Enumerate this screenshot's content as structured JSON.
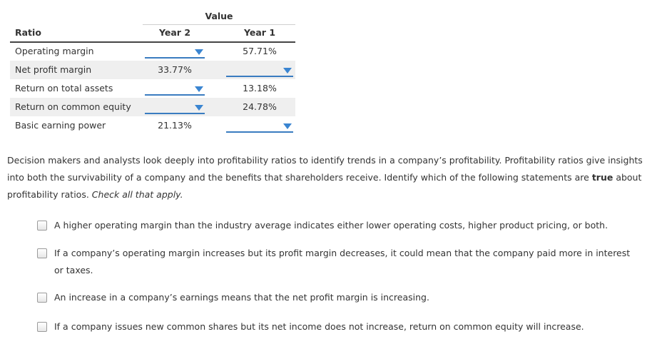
{
  "table": {
    "value_header": "Value",
    "col_ratio": "Ratio",
    "col_year2": "Year 2",
    "col_year1": "Year 1",
    "rows": [
      {
        "label": "Operating margin",
        "year2": "",
        "year1": "57.71%"
      },
      {
        "label": "Net profit margin",
        "year2": "33.77%",
        "year1": ""
      },
      {
        "label": "Return on total assets",
        "year2": "",
        "year1": "13.18%"
      },
      {
        "label": "Return on common equity",
        "year2": "",
        "year1": "24.78%"
      },
      {
        "label": "Basic earning power",
        "year2": "21.13%",
        "year1": ""
      }
    ]
  },
  "prompt": {
    "part1": "Decision makers and analysts look deeply into profitability ratios to identify trends in a company’s profitability. Profitability ratios give insights into both the survivability of a company and the benefits that shareholders receive. Identify which of the following statements are ",
    "bold": "true",
    "part2": " about profitability ratios. ",
    "italic": "Check all that apply."
  },
  "options": [
    {
      "text": "A higher operating margin than the industry average indicates either lower operating costs, higher product pricing, or both.",
      "checked": false
    },
    {
      "text": "If a company’s operating margin increases but its profit margin decreases, it could mean that the company paid more in interest or taxes.",
      "checked": false
    },
    {
      "text": "An increase in a company’s earnings means that the net profit margin is increasing.",
      "checked": false
    },
    {
      "text": "If a company issues new common shares but its net income does not increase, return on common equity will increase.",
      "checked": false
    }
  ],
  "colors": {
    "dropdown_accent": "#3a7cc0",
    "row_shade": "#efefef",
    "text": "#333333"
  }
}
